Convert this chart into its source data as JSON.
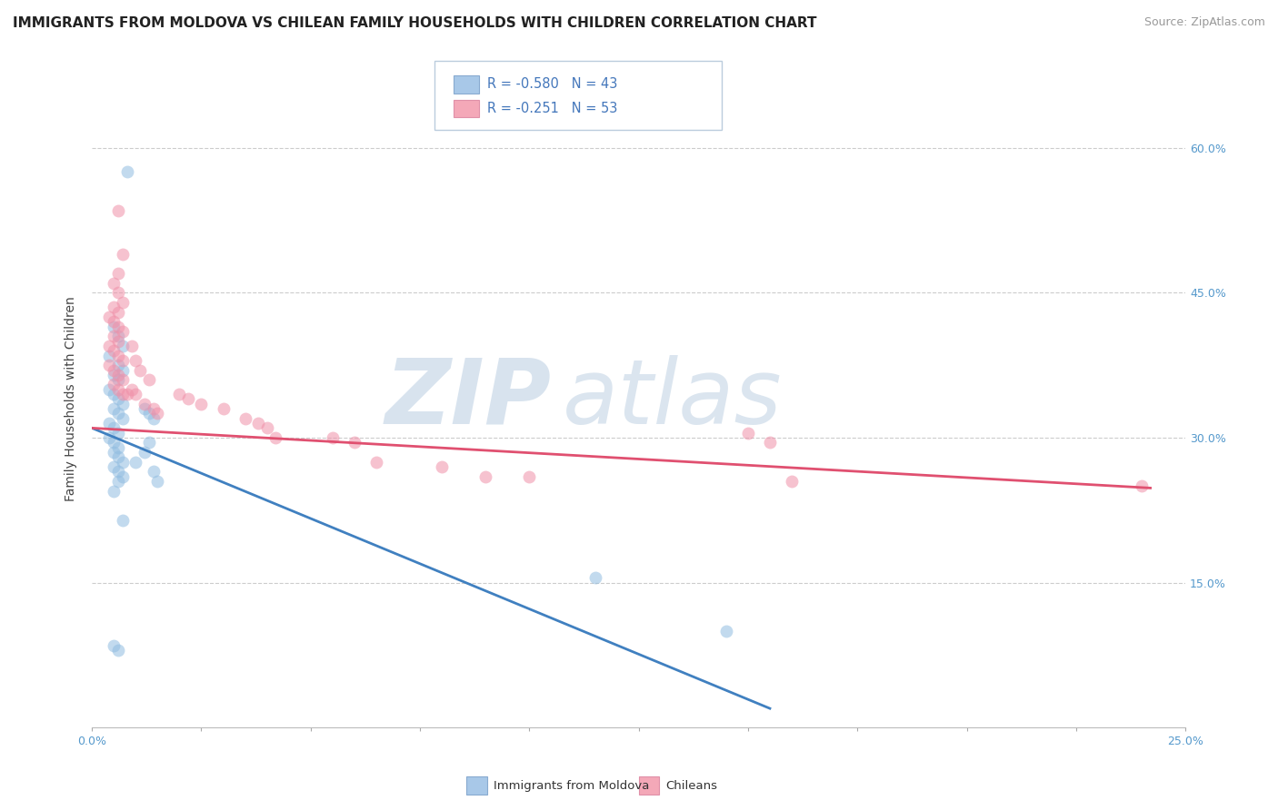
{
  "title": "IMMIGRANTS FROM MOLDOVA VS CHILEAN FAMILY HOUSEHOLDS WITH CHILDREN CORRELATION CHART",
  "source": "Source: ZipAtlas.com",
  "ylabel": "Family Households with Children",
  "y_ticks_right": [
    0.15,
    0.3,
    0.45,
    0.6
  ],
  "y_tick_labels_right": [
    "15.0%",
    "30.0%",
    "45.0%",
    "60.0%"
  ],
  "x_min": 0.0,
  "x_max": 0.25,
  "y_min": 0.0,
  "y_max": 0.68,
  "legend_entries": [
    {
      "color": "#a8c8e8",
      "label": "Immigrants from Moldova",
      "R": "-0.580",
      "N": "43"
    },
    {
      "color": "#f4a8b8",
      "label": "Chileans",
      "R": "-0.251",
      "N": "53"
    }
  ],
  "blue_scatter_x": [
    0.008,
    0.005,
    0.006,
    0.007,
    0.004,
    0.006,
    0.007,
    0.005,
    0.006,
    0.004,
    0.005,
    0.006,
    0.007,
    0.005,
    0.006,
    0.007,
    0.004,
    0.005,
    0.006,
    0.004,
    0.005,
    0.006,
    0.005,
    0.006,
    0.007,
    0.005,
    0.006,
    0.007,
    0.006,
    0.005,
    0.012,
    0.013,
    0.014,
    0.013,
    0.012,
    0.01,
    0.014,
    0.015,
    0.007,
    0.115,
    0.145,
    0.005,
    0.006
  ],
  "blue_scatter_y": [
    0.575,
    0.415,
    0.405,
    0.395,
    0.385,
    0.375,
    0.37,
    0.365,
    0.36,
    0.35,
    0.345,
    0.34,
    0.335,
    0.33,
    0.325,
    0.32,
    0.315,
    0.31,
    0.305,
    0.3,
    0.295,
    0.29,
    0.285,
    0.28,
    0.275,
    0.27,
    0.265,
    0.26,
    0.255,
    0.245,
    0.33,
    0.325,
    0.32,
    0.295,
    0.285,
    0.275,
    0.265,
    0.255,
    0.215,
    0.155,
    0.1,
    0.085,
    0.08
  ],
  "pink_scatter_x": [
    0.006,
    0.007,
    0.006,
    0.005,
    0.006,
    0.007,
    0.005,
    0.006,
    0.004,
    0.005,
    0.006,
    0.007,
    0.005,
    0.006,
    0.004,
    0.005,
    0.006,
    0.007,
    0.004,
    0.005,
    0.006,
    0.007,
    0.005,
    0.006,
    0.007,
    0.009,
    0.01,
    0.011,
    0.013,
    0.02,
    0.022,
    0.025,
    0.03,
    0.035,
    0.038,
    0.04,
    0.042,
    0.055,
    0.06,
    0.065,
    0.08,
    0.09,
    0.1,
    0.15,
    0.155,
    0.16,
    0.24,
    0.008,
    0.009,
    0.01,
    0.012,
    0.014,
    0.015
  ],
  "pink_scatter_y": [
    0.535,
    0.49,
    0.47,
    0.46,
    0.45,
    0.44,
    0.435,
    0.43,
    0.425,
    0.42,
    0.415,
    0.41,
    0.405,
    0.4,
    0.395,
    0.39,
    0.385,
    0.38,
    0.375,
    0.37,
    0.365,
    0.36,
    0.355,
    0.35,
    0.345,
    0.395,
    0.38,
    0.37,
    0.36,
    0.345,
    0.34,
    0.335,
    0.33,
    0.32,
    0.315,
    0.31,
    0.3,
    0.3,
    0.295,
    0.275,
    0.27,
    0.26,
    0.26,
    0.305,
    0.295,
    0.255,
    0.25,
    0.345,
    0.35,
    0.345,
    0.335,
    0.33,
    0.325
  ],
  "blue_line_x": [
    0.0,
    0.155
  ],
  "blue_line_y": [
    0.31,
    0.02
  ],
  "pink_line_x": [
    0.0,
    0.242
  ],
  "pink_line_y": [
    0.31,
    0.248
  ],
  "watermark_zip": "ZIP",
  "watermark_atlas": "atlas",
  "blue_color": "#90bce0",
  "pink_color": "#f090a8",
  "blue_line_color": "#4080c0",
  "pink_line_color": "#e05070",
  "title_fontsize": 11,
  "source_fontsize": 9,
  "axis_label_fontsize": 10,
  "tick_fontsize": 9,
  "background_color": "#ffffff",
  "grid_color": "#cccccc"
}
